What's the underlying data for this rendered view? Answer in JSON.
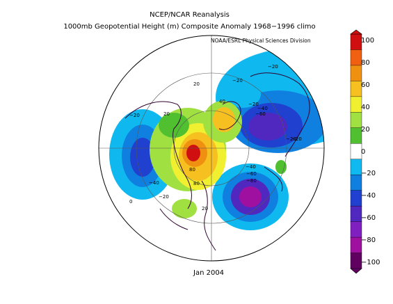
{
  "title_line1": "NCEP/NCAR Reanalysis",
  "title_line2": "1000mb Geopotential Height (m) Composite Anomaly 1968−1996 climo",
  "credit": "NOAA/ESRL Physical Sciences Division",
  "footer": "Jan 2004",
  "colorbar": {
    "ticks": [
      "100",
      "80",
      "60",
      "40",
      "20",
      "0",
      "−20",
      "−40",
      "−60",
      "−80",
      "−100"
    ],
    "colors": [
      "#d01010",
      "#f06010",
      "#f09010",
      "#f5c020",
      "#f0f030",
      "#a0e040",
      "#50c030",
      "#ffffff",
      "#10b8f0",
      "#1080e0",
      "#2040d0",
      "#5028c0",
      "#8020c0",
      "#a010a0",
      "#600060"
    ]
  },
  "contour_labels": [
    {
      "text": "−20"
    },
    {
      "text": "−20"
    },
    {
      "text": "−20"
    },
    {
      "text": "−40"
    },
    {
      "text": "−60"
    },
    {
      "text": "−20"
    },
    {
      "text": "20"
    },
    {
      "text": "20"
    },
    {
      "text": "40"
    },
    {
      "text": "80"
    },
    {
      "text": "80"
    },
    {
      "text": "−40"
    },
    {
      "text": "−20"
    },
    {
      "text": "−20"
    },
    {
      "text": "0"
    },
    {
      "text": "20"
    },
    {
      "text": "−40"
    },
    {
      "text": "−60"
    },
    {
      "text": "−80"
    },
    {
      "text": "−20"
    }
  ]
}
